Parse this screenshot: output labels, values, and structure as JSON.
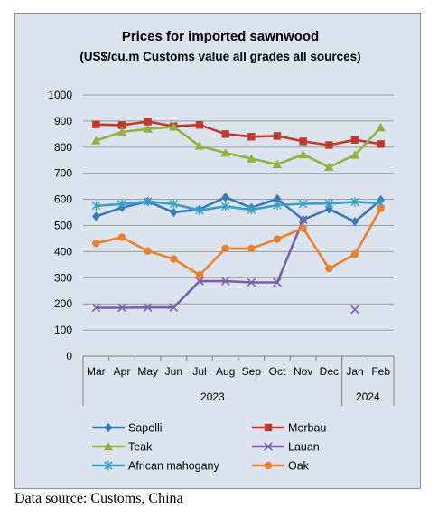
{
  "chart_data": {
    "type": "line",
    "title": "Prices for imported sawnwood",
    "subtitle": "(US$/cu.m Customs value all grades all sources)",
    "categories": [
      "Mar",
      "Apr",
      "May",
      "Jun",
      "Jul",
      "Aug",
      "Sep",
      "Oct",
      "Nov",
      "Dec",
      "Jan",
      "Feb"
    ],
    "year_groups": [
      {
        "label": "2023",
        "start": 0,
        "end": 9
      },
      {
        "label": "2024",
        "start": 10,
        "end": 11
      }
    ],
    "ylim": [
      0,
      1000
    ],
    "yticks": [
      0,
      100,
      200,
      300,
      400,
      500,
      600,
      700,
      800,
      900,
      1000
    ],
    "grid": true,
    "legend_position": "bottom",
    "series": [
      {
        "name": "Sapelli",
        "color": "#3a78b8",
        "marker": "diamond",
        "values": [
          535,
          568,
          592,
          550,
          562,
          608,
          568,
          602,
          522,
          563,
          515,
          598
        ]
      },
      {
        "name": "Merbau",
        "color": "#c0392b",
        "marker": "square",
        "values": [
          887,
          884,
          898,
          880,
          885,
          850,
          840,
          843,
          822,
          808,
          828,
          812
        ]
      },
      {
        "name": "Teak",
        "color": "#8db43e",
        "marker": "triangle",
        "values": [
          825,
          858,
          870,
          878,
          805,
          778,
          756,
          734,
          772,
          724,
          770,
          875
        ]
      },
      {
        "name": "Lauan",
        "color": "#7b5ea8",
        "marker": "x",
        "values": [
          185,
          185,
          186,
          186,
          287,
          287,
          282,
          282,
          522,
          null,
          178,
          null
        ]
      },
      {
        "name": "African mahogany",
        "color": "#3aa0bf",
        "marker": "asterisk",
        "values": [
          575,
          582,
          592,
          582,
          558,
          573,
          560,
          578,
          583,
          584,
          590,
          585
        ]
      },
      {
        "name": "Oak",
        "color": "#e8822e",
        "marker": "circle",
        "values": [
          432,
          455,
          402,
          372,
          310,
          412,
          412,
          448,
          490,
          335,
          390,
          565
        ]
      }
    ]
  },
  "source_note": "Data source: Customs, China"
}
